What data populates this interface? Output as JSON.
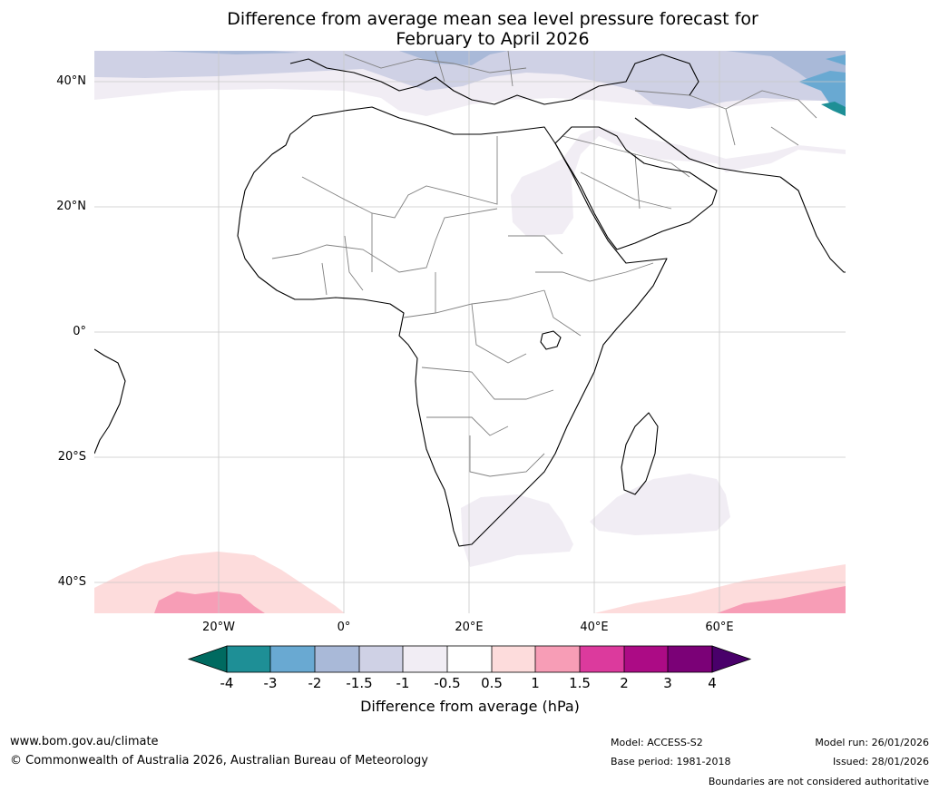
{
  "title": {
    "line1": "Difference from average mean sea level pressure forecast for",
    "line2": "February to April 2026"
  },
  "map": {
    "lat_labels": [
      "40°N",
      "20°N",
      "0°",
      "20°S",
      "40°S"
    ],
    "lon_labels": [
      "20°W",
      "0°",
      "20°E",
      "40°E",
      "60°E"
    ]
  },
  "colorbar": {
    "ticks": [
      "-4",
      "-3",
      "-2",
      "-1.5",
      "-1",
      "-0.5",
      "0.5",
      "1",
      "1.5",
      "2",
      "3",
      "4"
    ],
    "colors": [
      "#006a60",
      "#1e8f96",
      "#69a9d2",
      "#a9b9d8",
      "#cfd1e5",
      "#f1edf4",
      "#ffffff",
      "#fddcdc",
      "#f79db6",
      "#dc3a9d",
      "#ac0b85",
      "#7b0177",
      "#49006a"
    ],
    "label": "Difference from average (hPa)"
  },
  "footer": {
    "website": "www.bom.gov.au/climate",
    "copyright": "© Commonwealth of Australia 2026, Australian Bureau of Meteorology",
    "model": "Model: ACCESS-S2",
    "base_period": "Base period: 1981-2018",
    "model_run": "Model run: 26/01/2026",
    "issued": "Issued: 28/01/2026",
    "disclaimer": "Boundaries are not considered authoritative"
  }
}
